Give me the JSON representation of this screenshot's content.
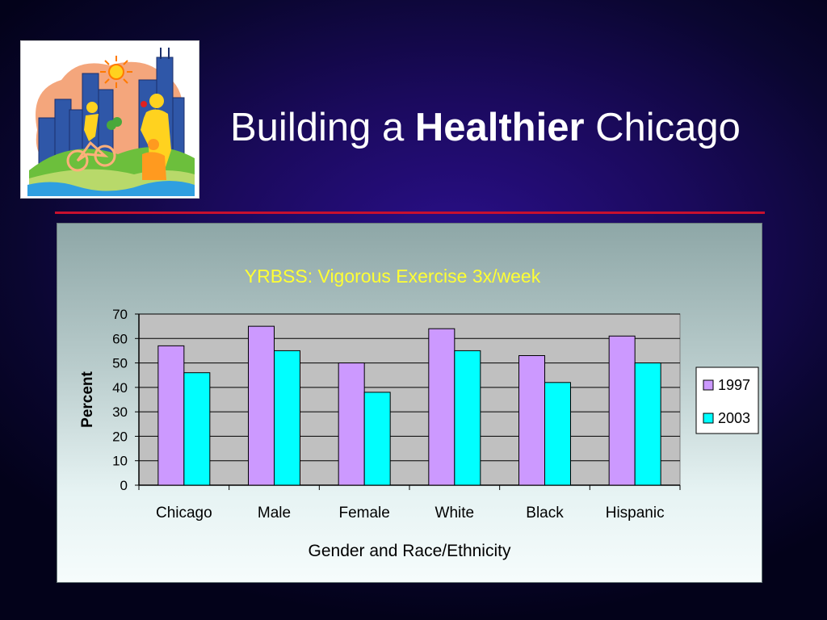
{
  "header": {
    "title_prefix": "Building a",
    "title_bold": "Healthier",
    "title_suffix": "Chicago"
  },
  "logo": {
    "icon": "healthy-chicago-logo"
  },
  "colors": {
    "title": "#ffffff",
    "divider": "#c8102e",
    "chart_title": "#ffff33",
    "series_1997": "#cc99ff",
    "series_2003": "#00ffff",
    "plot_bg": "#c0c0c0"
  },
  "chart_data": {
    "type": "bar",
    "title": "YRBSS: Vigorous Exercise 3x/week",
    "xlabel": "Gender and Race/Ethnicity",
    "ylabel": "Percent",
    "categories": [
      "Chicago",
      "Male",
      "Female",
      "White",
      "Black",
      "Hispanic"
    ],
    "series": [
      {
        "name": "1997",
        "values": [
          57,
          65,
          50,
          64,
          53,
          61
        ]
      },
      {
        "name": "2003",
        "values": [
          46,
          55,
          38,
          55,
          42,
          50
        ]
      }
    ],
    "ylim": [
      0,
      70
    ],
    "yticks": [
      0,
      10,
      20,
      30,
      40,
      50,
      60,
      70
    ],
    "grid": true,
    "legend": "right"
  }
}
